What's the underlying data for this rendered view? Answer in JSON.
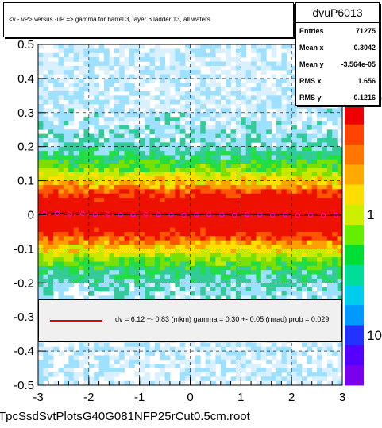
{
  "title": "<v - vP>      versus  -uP =>  gamma for barrel 3, layer 6 ladder 13, all wafers",
  "stats": {
    "name": "dvuP6013",
    "rows": [
      {
        "key": "Entries",
        "value": "71275"
      },
      {
        "key": "Mean x",
        "value": "0.3042"
      },
      {
        "key": "Mean y",
        "value": "-3.564e-05"
      },
      {
        "key": "RMS x",
        "value": "1.656"
      },
      {
        "key": "RMS y",
        "value": "0.1216"
      }
    ]
  },
  "fit_legend": "dv =    6.12 +-  0.83 (mkm) gamma =    0.30 +-  0.05 (mrad) prob = 0.029",
  "footer": "TpcSsdSvtPlotsG40G081NFP25rCut0.5cm.root",
  "colors": {
    "fit_line": "#dd0000",
    "profile_marker": "#ff00ff"
  },
  "chart_data": {
    "type": "heatmap",
    "x_range": [
      -3,
      3
    ],
    "y_range": [
      -0.5,
      0.5
    ],
    "x_ticks": [
      "-3",
      "-2",
      "-1",
      "0",
      "1",
      "2",
      "3"
    ],
    "y_ticks": [
      "-0.5",
      "-0.4",
      "-0.3",
      "-0.2",
      "-0.1",
      "0",
      "0.1",
      "0.2",
      "0.3",
      "0.4",
      "0.5"
    ],
    "z_scale": "log",
    "z_ticks": [
      "10",
      "1",
      "10"
    ],
    "grid": true,
    "profile": {
      "x": [
        -2.875,
        -2.625,
        -2.375,
        -2.125,
        -1.875,
        -1.625,
        -1.375,
        -1.125,
        -0.875,
        -0.625,
        -0.375,
        -0.125,
        0.125,
        0.375,
        0.625,
        0.875,
        1.125,
        1.375,
        1.625,
        1.875,
        2.125,
        2.375,
        2.625,
        2.875
      ],
      "y": [
        0.003,
        0.004,
        0.002,
        0.003,
        0.001,
        0.002,
        0.0,
        0.001,
        0.002,
        0.001,
        0.0,
        -0.001,
        0.0,
        0.001,
        0.0,
        -0.001,
        0.001,
        0.0,
        -0.001,
        0.0,
        -0.002,
        -0.001,
        -0.002,
        -0.001
      ]
    },
    "fit_line": {
      "x": [
        -3,
        3
      ],
      "y": [
        0.006,
        0.0
      ]
    }
  }
}
